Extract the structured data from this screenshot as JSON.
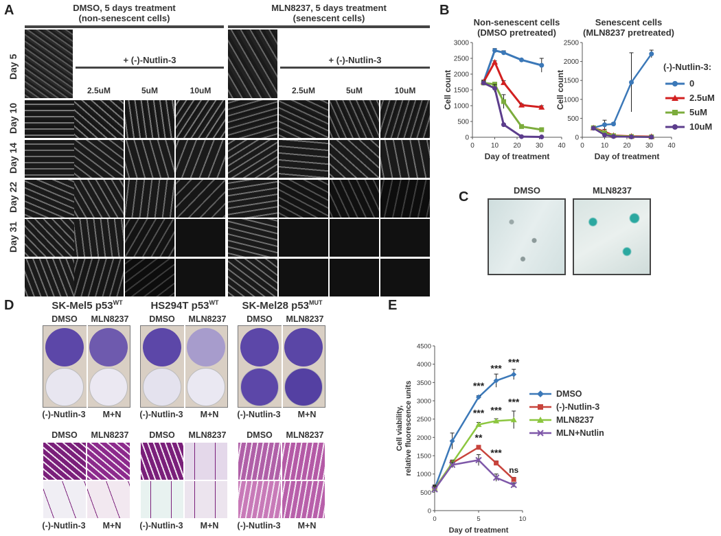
{
  "panelA": {
    "label": "A",
    "dmso_header": "DMSO, 5 days treatment",
    "dmso_sub": "(non-senescent cells)",
    "mln_header": "MLN8237, 5 days treatment",
    "mln_sub": "(senescent cells)",
    "nutlin_label": "+ (-)-Nutlin-3",
    "conc_labels": [
      "2.5uM",
      "5uM",
      "10uM"
    ],
    "rows": [
      "Day 5",
      "Day 10",
      "Day 14",
      "Day 22",
      "Day 31"
    ]
  },
  "panelB": {
    "label": "B",
    "left_title_1": "Non-senescent cells",
    "left_title_2": "(DMSO pretreated)",
    "right_title_1": "Senescent cells",
    "right_title_2": "(MLN8237 pretreated)",
    "legend_title": "(-)-Nutlin-3:",
    "legend": [
      {
        "name": "0",
        "color": "#3b78b8"
      },
      {
        "name": "2.5uM",
        "color": "#d22020"
      },
      {
        "name": "5uM",
        "color": "#7cac3c"
      },
      {
        "name": "10uM",
        "color": "#5c3d8c"
      }
    ]
  },
  "panelC": {
    "label": "C",
    "left": "DMSO",
    "right": "MLN8237"
  },
  "panelD": {
    "label": "D",
    "titles": [
      {
        "main": "SK-Mel5 p53",
        "sup": "WT"
      },
      {
        "main": "HS294T p53",
        "sup": "WT"
      },
      {
        "main": "SK-Mel28 p53",
        "sup": "MUT"
      }
    ],
    "col_dmso": "DMSO",
    "col_mln": "MLN8237",
    "row_nutlin": "(-)-Nutlin-3",
    "row_mn": "M+N"
  },
  "panelE": {
    "label": "E",
    "legend": [
      {
        "name": "DMSO",
        "color": "#3b78b8"
      },
      {
        "name": "(-)-Nutlin-3",
        "color": "#c8443c"
      },
      {
        "name": "MLN8237",
        "color": "#8cc63f"
      },
      {
        "name": "MLN+Nutlin",
        "color": "#7e57a8"
      }
    ],
    "annotations": [
      "***",
      "***",
      "***",
      "***",
      "***",
      "***",
      "**",
      "***",
      "ns"
    ]
  },
  "chart_data": [
    {
      "type": "line",
      "title": "Non-senescent cells (DMSO pretreated)",
      "xlabel": "Day of treatment",
      "ylabel": "Cell count",
      "xlim": [
        0,
        40
      ],
      "ylim": [
        0,
        3000
      ],
      "xticks": [
        0,
        10,
        20,
        30,
        40
      ],
      "yticks": [
        0,
        500,
        1000,
        1500,
        2000,
        2500,
        3000
      ],
      "x": [
        5,
        10,
        14,
        22,
        31
      ],
      "series": [
        {
          "name": "0",
          "values": [
            1750,
            2750,
            2680,
            2450,
            2280
          ],
          "err": [
            60,
            60,
            60,
            30,
            220
          ]
        },
        {
          "name": "2.5uM",
          "values": [
            1750,
            2380,
            1730,
            1020,
            950
          ],
          "err": [
            60,
            40,
            60,
            40,
            50
          ]
        },
        {
          "name": "5uM",
          "values": [
            1720,
            1680,
            1130,
            340,
            240
          ],
          "err": [
            60,
            60,
            220,
            30,
            20
          ]
        },
        {
          "name": "10uM",
          "values": [
            1720,
            1550,
            400,
            20,
            10
          ],
          "err": [
            60,
            120,
            30,
            10,
            5
          ]
        }
      ]
    },
    {
      "type": "line",
      "title": "Senescent cells (MLN8237 pretreated)",
      "xlabel": "Day of treatment",
      "ylabel": "Cell count",
      "xlim": [
        0,
        40
      ],
      "ylim": [
        0,
        2500
      ],
      "xticks": [
        0,
        10,
        20,
        30,
        40
      ],
      "yticks": [
        0,
        500,
        1000,
        1500,
        2000,
        2500
      ],
      "x": [
        5,
        10,
        14,
        22,
        31
      ],
      "series": [
        {
          "name": "0",
          "values": [
            250,
            330,
            350,
            1450,
            2200
          ],
          "err": [
            40,
            120,
            40,
            780,
            100
          ]
        },
        {
          "name": "2.5uM",
          "values": [
            250,
            150,
            50,
            30,
            20
          ],
          "err": [
            30,
            60,
            20,
            10,
            5
          ]
        },
        {
          "name": "5uM",
          "values": [
            250,
            120,
            40,
            20,
            10
          ],
          "err": [
            30,
            40,
            20,
            10,
            5
          ]
        },
        {
          "name": "10uM",
          "values": [
            240,
            60,
            20,
            10,
            5
          ],
          "err": [
            30,
            30,
            10,
            5,
            5
          ]
        }
      ]
    },
    {
      "type": "line",
      "xlabel": "Day of treatment",
      "ylabel": "Cell viability, relative fluorescence units",
      "xlim": [
        0,
        10
      ],
      "ylim": [
        0,
        4500
      ],
      "xticks": [
        0,
        5,
        10
      ],
      "yticks": [
        0,
        500,
        1000,
        1500,
        2000,
        2500,
        3000,
        3500,
        4000,
        4500
      ],
      "x": [
        0,
        2,
        5,
        7,
        9
      ],
      "series": [
        {
          "name": "DMSO",
          "values": [
            600,
            1900,
            3100,
            3550,
            3720
          ],
          "err": [
            100,
            220,
            40,
            180,
            140
          ]
        },
        {
          "name": "(-)-Nutlin-3",
          "values": [
            600,
            1300,
            1730,
            1300,
            850
          ],
          "err": [
            80,
            80,
            50,
            60,
            60
          ]
        },
        {
          "name": "MLN8237",
          "values": [
            600,
            1300,
            2350,
            2450,
            2480
          ],
          "err": [
            80,
            80,
            60,
            60,
            240
          ]
        },
        {
          "name": "MLN+Nutlin",
          "values": [
            580,
            1250,
            1380,
            900,
            700
          ],
          "err": [
            80,
            80,
            150,
            100,
            60
          ]
        }
      ]
    }
  ]
}
